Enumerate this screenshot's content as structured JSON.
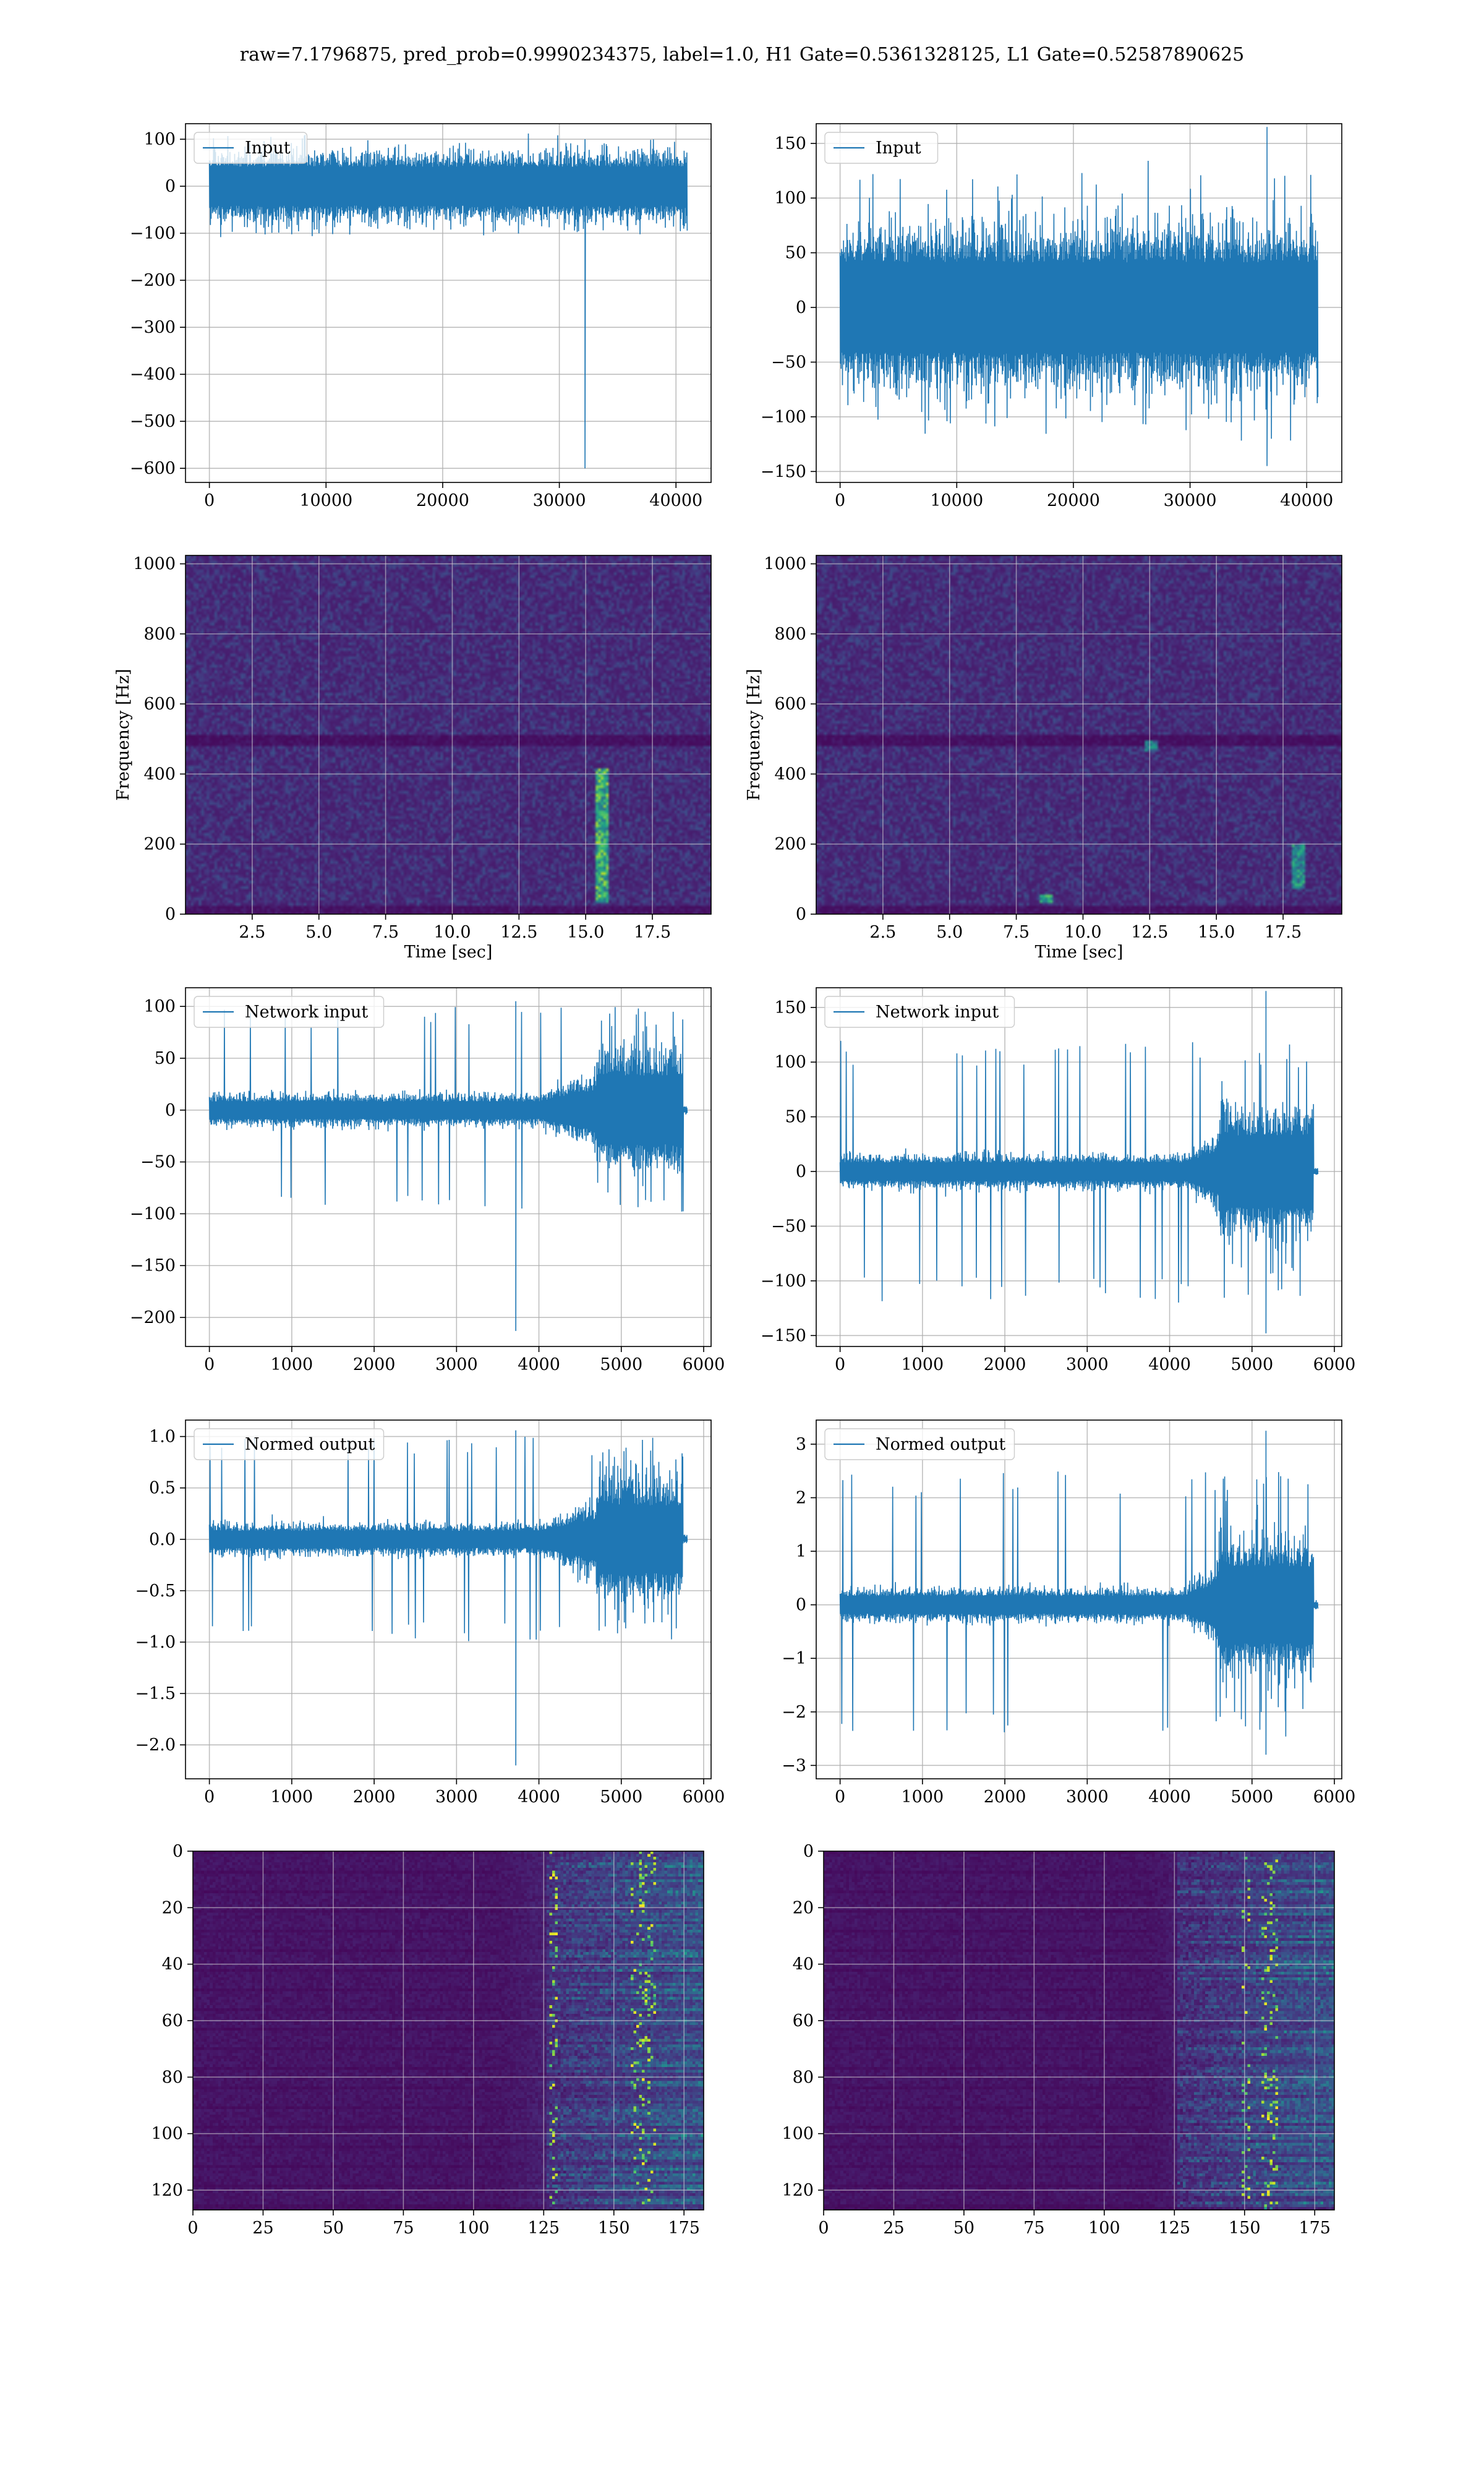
{
  "title": "raw=7.1796875, pred_prob=0.9990234375, label=1.0, H1 Gate=0.5361328125, L1 Gate=0.52587890625",
  "colors": {
    "line": "#1f77b4",
    "viridis_dark": "#440154",
    "viridis_bright": "#fde725"
  },
  "chart_data": [
    {
      "id": "h1-input",
      "type": "line",
      "legend": "Input",
      "legend_loc": "upper-left",
      "grid": true,
      "xlim": [
        -2048,
        43008
      ],
      "ylim": [
        -630,
        133
      ],
      "xticks": [
        0,
        10000,
        20000,
        30000,
        40000
      ],
      "yticks": [
        100,
        0,
        -100,
        -200,
        -300,
        -400,
        -500,
        -600
      ],
      "envelope": {
        "x_start": 0,
        "x_end": 40960,
        "noise_amp": 75,
        "peak_amp": 110,
        "spike": {
          "x": 32200,
          "y_min": -600,
          "y_max": 100
        }
      }
    },
    {
      "id": "l1-input",
      "type": "line",
      "legend": "Input",
      "legend_loc": "upper-left",
      "grid": true,
      "xlim": [
        -2048,
        43008
      ],
      "ylim": [
        -160,
        168
      ],
      "xticks": [
        0,
        10000,
        20000,
        30000,
        40000
      ],
      "yticks": [
        150,
        100,
        50,
        0,
        -50,
        -100,
        -150
      ],
      "envelope": {
        "x_start": 0,
        "x_end": 40960,
        "noise_amp": 75,
        "peak_amp": 125,
        "spike": {
          "x": 36600,
          "y_min": -145,
          "y_max": 165
        }
      }
    },
    {
      "id": "h1-spectrogram",
      "type": "heatmap",
      "grid": true,
      "colormap": "viridis",
      "xlim": [
        0,
        19.7
      ],
      "ylim": [
        0,
        1024
      ],
      "xticks": [
        2.5,
        5.0,
        7.5,
        10.0,
        12.5,
        15.0,
        17.5
      ],
      "yticks": [
        0,
        200,
        400,
        600,
        800,
        1000
      ],
      "xticklabels": [
        "2.5",
        "5.0",
        "7.5",
        "10.0",
        "12.5",
        "15.0",
        "17.5"
      ],
      "xlabel": "Time [sec]",
      "ylabel": "Frequency [Hz]",
      "features": {
        "hot_spots": [
          {
            "t": 15.6,
            "f_min": 40,
            "f_max": 420,
            "intensity": 0.9
          }
        ],
        "dim_band_hz": 500
      }
    },
    {
      "id": "l1-spectrogram",
      "type": "heatmap",
      "grid": true,
      "colormap": "viridis",
      "xlim": [
        0,
        19.7
      ],
      "ylim": [
        0,
        1024
      ],
      "xticks": [
        2.5,
        5.0,
        7.5,
        10.0,
        12.5,
        15.0,
        17.5
      ],
      "yticks": [
        0,
        200,
        400,
        600,
        800,
        1000
      ],
      "xticklabels": [
        "2.5",
        "5.0",
        "7.5",
        "10.0",
        "12.5",
        "15.0",
        "17.5"
      ],
      "xlabel": "Time [sec]",
      "ylabel": "Frequency [Hz]",
      "features": {
        "hot_spots": [
          {
            "t": 18.0,
            "f_min": 80,
            "f_max": 200,
            "intensity": 0.7
          },
          {
            "t": 8.6,
            "f_min": 40,
            "f_max": 60,
            "intensity": 0.8
          },
          {
            "t": 12.5,
            "f_min": 470,
            "f_max": 500,
            "intensity": 0.6
          }
        ],
        "dim_band_hz": 500
      }
    },
    {
      "id": "h1-network-input",
      "type": "line",
      "legend": "Network input",
      "legend_loc": "upper-left",
      "grid": true,
      "xlim": [
        -290,
        6090
      ],
      "ylim": [
        -228,
        118
      ],
      "xticks": [
        0,
        1000,
        2000,
        3000,
        4000,
        5000,
        6000
      ],
      "yticks": [
        100,
        50,
        0,
        -50,
        -100,
        -150,
        -200
      ],
      "envelope": {
        "x_start": 0,
        "x_end": 5800,
        "base_amp": 15,
        "ramp_start": 4000,
        "burst_start": 4700,
        "burst_end": 5750,
        "burst_amp": 60,
        "peak_amp": 100,
        "tail_end": 5800,
        "spike": {
          "x": 3720,
          "y_min": -213,
          "y_max": 105
        }
      }
    },
    {
      "id": "l1-network-input",
      "type": "line",
      "legend": "Network input",
      "legend_loc": "upper-left",
      "grid": true,
      "xlim": [
        -290,
        6090
      ],
      "ylim": [
        -160,
        168
      ],
      "xticks": [
        0,
        1000,
        2000,
        3000,
        4000,
        5000,
        6000
      ],
      "yticks": [
        150,
        100,
        50,
        0,
        -50,
        -100,
        -150
      ],
      "envelope": {
        "x_start": 0,
        "x_end": 5800,
        "base_amp": 15,
        "ramp_start": 4200,
        "burst_start": 4600,
        "burst_end": 5750,
        "burst_amp": 60,
        "peak_amp": 120,
        "tail_end": 5800,
        "spike": {
          "x": 5170,
          "y_min": -148,
          "y_max": 165
        }
      }
    },
    {
      "id": "h1-normed-output",
      "type": "line",
      "legend": "Normed output",
      "legend_loc": "upper-left",
      "grid": true,
      "xlim": [
        -290,
        6090
      ],
      "ylim": [
        -2.33,
        1.16
      ],
      "xticks": [
        0,
        1000,
        2000,
        3000,
        4000,
        5000,
        6000
      ],
      "yticks": [
        1.0,
        0.5,
        0.0,
        -0.5,
        -1.0,
        -1.5,
        -2.0
      ],
      "yticklabels": [
        "1.0",
        "0.5",
        "0.0",
        "−0.5",
        "−1.0",
        "−1.5",
        "−2.0"
      ],
      "envelope": {
        "x_start": 0,
        "x_end": 5800,
        "base_amp": 0.15,
        "ramp_start": 4000,
        "burst_start": 4700,
        "burst_end": 5750,
        "burst_amp": 0.6,
        "peak_amp": 1.0,
        "tail_end": 5800,
        "spike": {
          "x": 3720,
          "y_min": -2.2,
          "y_max": 1.06
        }
      }
    },
    {
      "id": "l1-normed-output",
      "type": "line",
      "legend": "Normed output",
      "legend_loc": "upper-left",
      "grid": true,
      "xlim": [
        -290,
        6090
      ],
      "ylim": [
        -3.25,
        3.45
      ],
      "xticks": [
        0,
        1000,
        2000,
        3000,
        4000,
        5000,
        6000
      ],
      "yticks": [
        3,
        2,
        1,
        0,
        -1,
        -2,
        -3
      ],
      "envelope": {
        "x_start": 0,
        "x_end": 5800,
        "base_amp": 0.3,
        "ramp_start": 4200,
        "burst_start": 4600,
        "burst_end": 5750,
        "burst_amp": 1.3,
        "peak_amp": 2.5,
        "tail_end": 5800,
        "spike": {
          "x": 5170,
          "y_min": -2.8,
          "y_max": 3.25
        }
      }
    },
    {
      "id": "h1-feature-map",
      "type": "heatmap",
      "grid": true,
      "colormap": "viridis",
      "xlim": [
        0,
        182
      ],
      "ylim": [
        127,
        0
      ],
      "xticks": [
        0,
        25,
        50,
        75,
        100,
        125,
        150,
        175
      ],
      "yticks": [
        0,
        20,
        40,
        60,
        80,
        100,
        120
      ],
      "features": {
        "onset_col": 110,
        "active_col": 125,
        "hot_cols": [
          128,
          157,
          160,
          163
        ]
      }
    },
    {
      "id": "l1-feature-map",
      "type": "heatmap",
      "grid": true,
      "colormap": "viridis",
      "xlim": [
        0,
        182
      ],
      "ylim": [
        127,
        0
      ],
      "xticks": [
        0,
        25,
        50,
        75,
        100,
        125,
        150,
        175
      ],
      "yticks": [
        0,
        20,
        40,
        60,
        80,
        100,
        120
      ],
      "features": {
        "onset_col": 118,
        "active_col": 125,
        "hot_cols": [
          150,
          157,
          160
        ]
      }
    }
  ]
}
